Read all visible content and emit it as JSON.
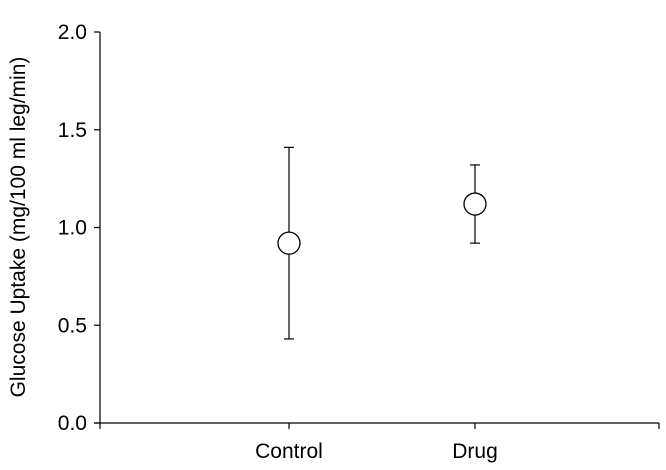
{
  "chart_data": {
    "type": "scatter",
    "title": "",
    "xlabel": "",
    "ylabel": "Glucose Uptake (mg/100 ml leg/min)",
    "ylim": [
      0,
      2.0
    ],
    "yticks": [
      "0.0",
      "0.5",
      "1.0",
      "1.5",
      "2.0"
    ],
    "ytick_values": [
      0,
      0.5,
      1.0,
      1.5,
      2.0
    ],
    "categories": [
      "Control",
      "Drug"
    ],
    "points": [
      {
        "category": "Control",
        "mean": 0.92,
        "upper": 1.41,
        "lower": 0.43
      },
      {
        "category": "Drug",
        "mean": 1.12,
        "upper": 1.32,
        "lower": 0.92
      }
    ],
    "marker": "open-circle",
    "error_bars": true,
    "grid": false,
    "legend": "none"
  }
}
